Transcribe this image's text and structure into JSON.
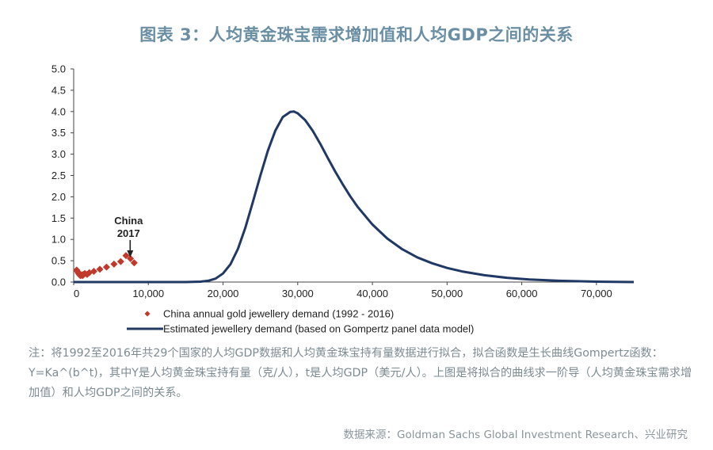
{
  "page": {
    "title": "图表 3：人均黄金珠宝需求增加值和人均GDP之间的关系",
    "note": "注：将1992至2016年共29个国家的人均GDP数据和人均黄金珠宝持有量数据进行拟合，拟合函数是生长曲线Gompertz函数：Y=Ka^(b^t)，其中Y是人均黄金珠宝持有量（克/人），t是人均GDP（美元/人）。上图是将拟合的曲线求一阶导（人均黄金珠宝需求增加值）和人均GDP之间的关系。",
    "source": "数据来源：Goldman Sachs Global Investment Research、兴业研究"
  },
  "chart_data": {
    "type": "line",
    "xlim": [
      0,
      75000
    ],
    "ylim": [
      0,
      5.0
    ],
    "x_ticks": [
      0,
      10000,
      20000,
      30000,
      40000,
      50000,
      60000,
      70000
    ],
    "x_tick_labels": [
      "0",
      "10,000",
      "20,000",
      "30,000",
      "40,000",
      "50,000",
      "60,000",
      "70,000"
    ],
    "y_ticks": [
      0,
      0.5,
      1.0,
      1.5,
      2.0,
      2.5,
      3.0,
      3.5,
      4.0,
      4.5,
      5.0
    ],
    "y_tick_labels": [
      "0.0",
      "0.5",
      "1.0",
      "1.5",
      "2.0",
      "2.5",
      "3.0",
      "3.5",
      "4.0",
      "4.5",
      "5.0"
    ],
    "grid": false,
    "legend_position": "bottom",
    "series": [
      {
        "name": "China annual gold jewellery demand (1992 - 2016)",
        "kind": "scatter",
        "color": "#c0392b",
        "x": [
          400,
          500,
          600,
          700,
          800,
          900,
          1000,
          1100,
          1200,
          1300,
          1500,
          1800,
          2100,
          2700,
          3500,
          4400,
          5400,
          6300,
          7000,
          7600,
          8100
        ],
        "y": [
          0.28,
          0.25,
          0.22,
          0.19,
          0.17,
          0.15,
          0.16,
          0.17,
          0.15,
          0.18,
          0.2,
          0.18,
          0.22,
          0.25,
          0.3,
          0.35,
          0.42,
          0.48,
          0.62,
          0.55,
          0.45
        ]
      },
      {
        "name": "Estimated jewellery demand (based on Gompertz panel data model)",
        "kind": "line",
        "color": "#1f3864",
        "x": [
          0,
          15000,
          17000,
          18000,
          19000,
          20000,
          21000,
          22000,
          23000,
          24000,
          25000,
          26000,
          27000,
          28000,
          29000,
          29500,
          30000,
          31000,
          32000,
          33000,
          34000,
          35000,
          36000,
          37000,
          38000,
          40000,
          42000,
          44000,
          46000,
          48000,
          50000,
          52000,
          55000,
          58000,
          61000,
          65000,
          70000,
          75000
        ],
        "y": [
          0,
          0,
          0.01,
          0.03,
          0.08,
          0.2,
          0.42,
          0.78,
          1.28,
          1.88,
          2.5,
          3.08,
          3.55,
          3.87,
          3.99,
          4.0,
          3.96,
          3.8,
          3.55,
          3.25,
          2.92,
          2.6,
          2.3,
          2.02,
          1.77,
          1.35,
          1.02,
          0.77,
          0.58,
          0.44,
          0.33,
          0.25,
          0.16,
          0.1,
          0.06,
          0.03,
          0.01,
          0.0
        ]
      }
    ],
    "annotation": {
      "line1": "China",
      "line2": "2017",
      "x": 8200,
      "y": 0.45
    }
  }
}
